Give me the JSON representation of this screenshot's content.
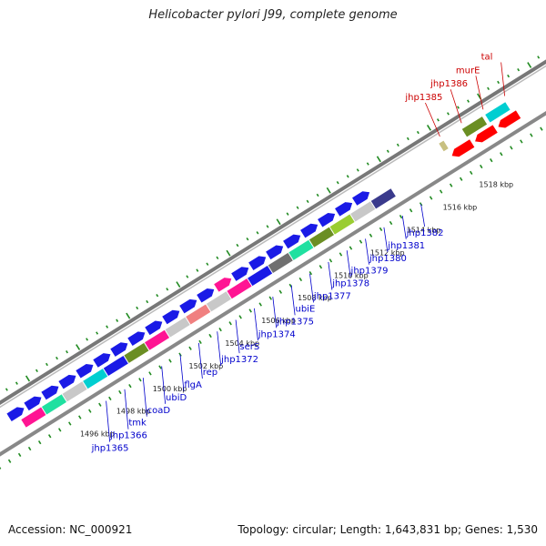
{
  "title": "Helicobacter pylori J99, complete genome",
  "footer": {
    "accession": "Accession: NC_000921",
    "topology": "Topology: circular; Length: 1,643,831 bp; Genes: 1,530"
  },
  "colors": {
    "blue": "#1a1ae6",
    "red": "#ff0000",
    "olive": "#6b8e23",
    "cyan": "#00ced1",
    "magenta": "#ff1493",
    "gray": "#c8c8c8",
    "teal": "#20e0a0",
    "salmon": "#f08080",
    "yellowgreen": "#9acd32",
    "darkgray": "#707070",
    "navy": "#3a3a8c",
    "tan": "#c8c080",
    "tick": "#228b22",
    "label_blue": "#0000cc",
    "label_red": "#cc0000"
  },
  "map": {
    "ticks": [
      {
        "label": "1496 kbp",
        "pos": 1496
      },
      {
        "label": "1498 kbp",
        "pos": 1498
      },
      {
        "label": "1500 kbp",
        "pos": 1500
      },
      {
        "label": "1502 kbp",
        "pos": 1502
      },
      {
        "label": "1504 kbp",
        "pos": 1504
      },
      {
        "label": "1506 kbp",
        "pos": 1506
      },
      {
        "label": "1508 kbp",
        "pos": 1508
      },
      {
        "label": "1510 kbp",
        "pos": 1510
      },
      {
        "label": "1512 kbp",
        "pos": 1512
      },
      {
        "label": "1514 kbp",
        "pos": 1514
      },
      {
        "label": "1516 kbp",
        "pos": 1516
      },
      {
        "label": "1518 kbp",
        "pos": 1518
      }
    ],
    "genes": [
      {
        "name": "jhp1365",
        "color_key": "label_blue"
      },
      {
        "name": "jhp1366",
        "color_key": "label_blue"
      },
      {
        "name": "tmk",
        "color_key": "label_blue"
      },
      {
        "name": "coaD",
        "color_key": "label_blue"
      },
      {
        "name": "ubiD",
        "color_key": "label_blue"
      },
      {
        "name": "flgA",
        "color_key": "label_blue"
      },
      {
        "name": "rep",
        "color_key": "label_blue"
      },
      {
        "name": "jhp1372",
        "color_key": "label_blue"
      },
      {
        "name": "serS",
        "color_key": "label_blue"
      },
      {
        "name": "jhp1374",
        "color_key": "label_blue"
      },
      {
        "name": "jhp1375",
        "color_key": "label_blue"
      },
      {
        "name": "ubiE",
        "color_key": "label_blue"
      },
      {
        "name": "jhp1377",
        "color_key": "label_blue"
      },
      {
        "name": "jhp1378",
        "color_key": "label_blue"
      },
      {
        "name": "jhp1379",
        "color_key": "label_blue"
      },
      {
        "name": "jhp1380",
        "color_key": "label_blue"
      },
      {
        "name": "jhp1381",
        "color_key": "label_blue"
      },
      {
        "name": "jhp1382",
        "color_key": "label_blue"
      },
      {
        "name": "jhp1385",
        "color_key": "label_red"
      },
      {
        "name": "jhp1386",
        "color_key": "label_red"
      },
      {
        "name": "murE",
        "color_key": "label_red"
      },
      {
        "name": "tal",
        "color_key": "label_red"
      }
    ],
    "forward_track": [
      {
        "color_key": "blue"
      },
      {
        "color_key": "blue"
      },
      {
        "color_key": "blue"
      },
      {
        "color_key": "blue"
      },
      {
        "color_key": "blue"
      },
      {
        "color_key": "blue"
      },
      {
        "color_key": "blue"
      },
      {
        "color_key": "blue"
      },
      {
        "color_key": "blue"
      },
      {
        "color_key": "blue"
      },
      {
        "color_key": "blue"
      },
      {
        "color_key": "blue"
      },
      {
        "color_key": "magenta"
      },
      {
        "color_key": "blue"
      },
      {
        "color_key": "blue"
      },
      {
        "color_key": "blue"
      },
      {
        "color_key": "blue"
      },
      {
        "color_key": "blue"
      },
      {
        "color_key": "blue"
      },
      {
        "color_key": "blue"
      },
      {
        "color_key": "blue"
      }
    ],
    "feature_track": [
      {
        "color_key": "magenta"
      },
      {
        "color_key": "teal"
      },
      {
        "color_key": "gray"
      },
      {
        "color_key": "cyan"
      },
      {
        "color_key": "blue"
      },
      {
        "color_key": "olive"
      },
      {
        "color_key": "magenta"
      },
      {
        "color_key": "gray"
      },
      {
        "color_key": "salmon"
      },
      {
        "color_key": "gray"
      },
      {
        "color_key": "magenta"
      },
      {
        "color_key": "blue"
      },
      {
        "color_key": "darkgray"
      },
      {
        "color_key": "teal"
      },
      {
        "color_key": "olive"
      },
      {
        "color_key": "yellowgreen"
      },
      {
        "color_key": "gray"
      },
      {
        "color_key": "navy"
      }
    ],
    "upper_track": [
      {
        "color_key": "tan"
      },
      {
        "color_key": "olive"
      },
      {
        "color_key": "cyan"
      }
    ],
    "reverse_track": [
      {
        "color_key": "red"
      },
      {
        "color_key": "red"
      },
      {
        "color_key": "red"
      }
    ]
  }
}
